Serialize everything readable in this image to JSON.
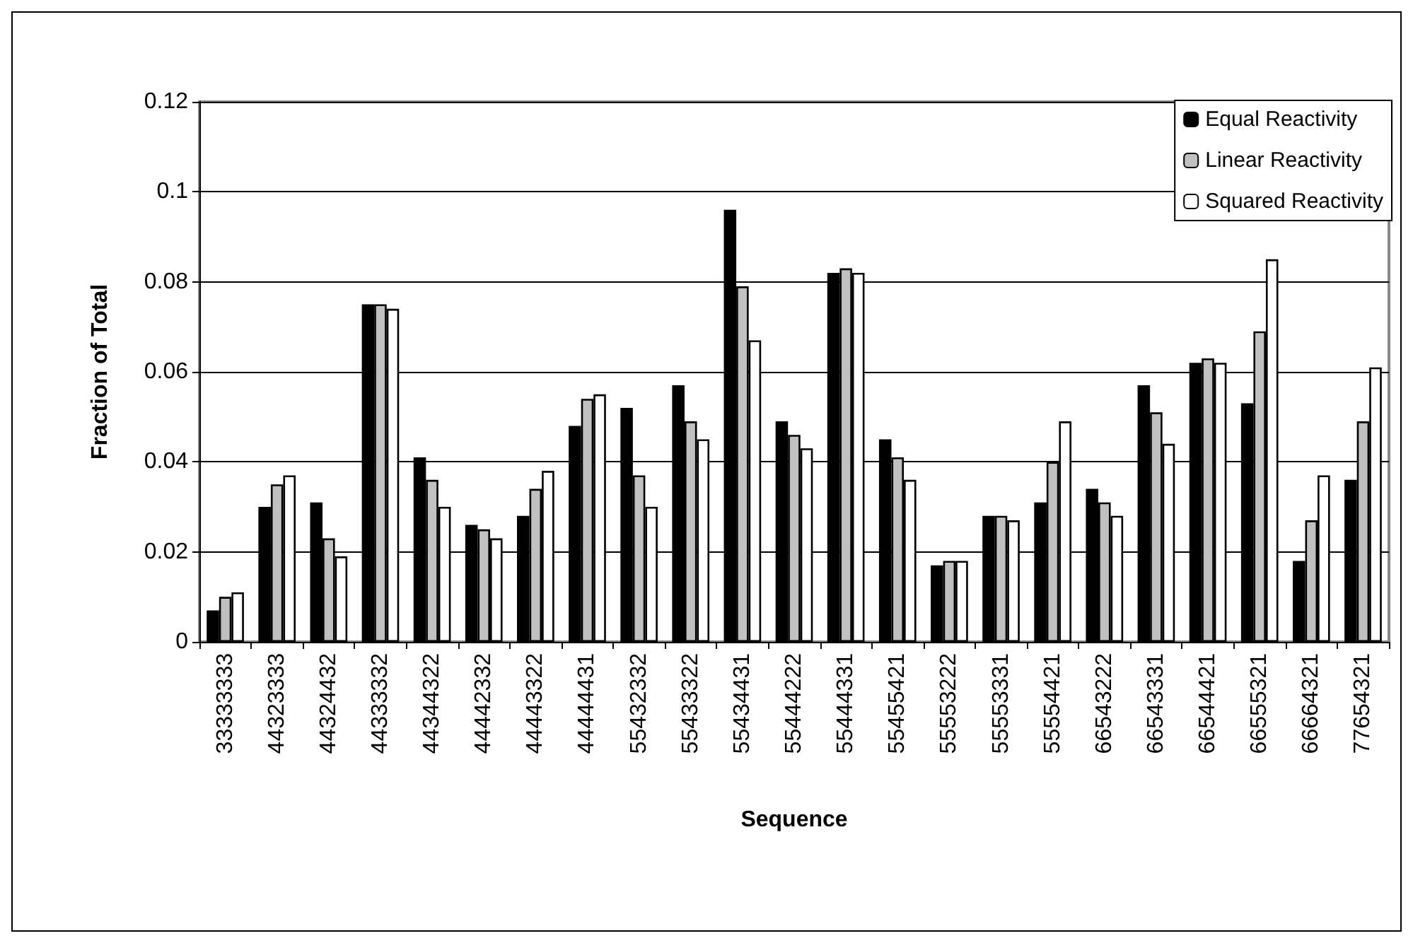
{
  "chart_data": {
    "type": "bar",
    "xlabel": "Sequence",
    "ylabel": "Fraction of Total",
    "categories": [
      "33333333",
      "44323333",
      "44324432",
      "44333332",
      "44344322",
      "44442332",
      "44443322",
      "44444431",
      "55432332",
      "55433322",
      "55434431",
      "55444222",
      "55444331",
      "55455421",
      "55553222",
      "55553331",
      "55554421",
      "66543222",
      "66543331",
      "66544421",
      "66555321",
      "66664321",
      "77654321"
    ],
    "series": [
      {
        "name": "Equal Reactivity",
        "color": "#000000",
        "values": [
          0.007,
          0.03,
          0.031,
          0.075,
          0.041,
          0.026,
          0.028,
          0.048,
          0.052,
          0.057,
          0.096,
          0.049,
          0.082,
          0.045,
          0.017,
          0.028,
          0.031,
          0.034,
          0.057,
          0.062,
          0.053,
          0.018,
          0.036
        ]
      },
      {
        "name": "Linear Reactivity",
        "color": "#c0c0c0",
        "values": [
          0.01,
          0.035,
          0.023,
          0.075,
          0.036,
          0.025,
          0.034,
          0.054,
          0.037,
          0.049,
          0.079,
          0.046,
          0.083,
          0.041,
          0.018,
          0.028,
          0.04,
          0.031,
          0.051,
          0.063,
          0.069,
          0.027,
          0.049
        ]
      },
      {
        "name": "Squared Reactivity",
        "color": "#ffffff",
        "values": [
          0.011,
          0.037,
          0.019,
          0.074,
          0.03,
          0.023,
          0.038,
          0.055,
          0.03,
          0.045,
          0.067,
          0.043,
          0.082,
          0.036,
          0.018,
          0.027,
          0.049,
          0.028,
          0.044,
          0.062,
          0.085,
          0.037,
          0.061
        ]
      }
    ],
    "ylim": [
      0,
      0.12
    ],
    "yticks": [
      0,
      0.02,
      0.04,
      0.06,
      0.08,
      0.1,
      0.12
    ],
    "grid": "y",
    "legend": "top right"
  }
}
